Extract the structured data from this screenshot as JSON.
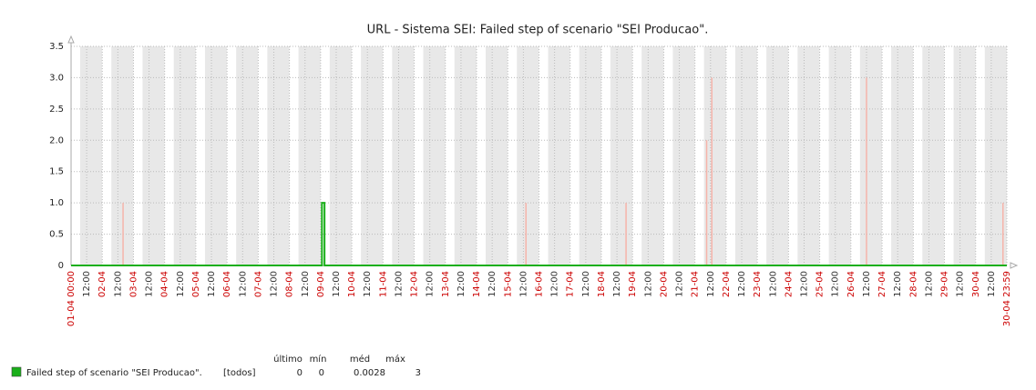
{
  "chart_data": {
    "type": "line",
    "title": "URL - Sistema SEI: Failed step of scenario \"SEI Producao\".",
    "ylim": [
      0,
      3.5
    ],
    "yticks": [
      0,
      0.5,
      {
        "value": 1,
        "label": "1.0"
      },
      1.5,
      {
        "value": 2,
        "label": "2.0"
      },
      2.5,
      {
        "value": 3,
        "label": "3.0"
      },
      3.5
    ],
    "xlim": [
      "01-04 00:00",
      "30-04 23:59"
    ],
    "date_color": "#cc0000",
    "grid": true,
    "xticks": [
      "01-04 00:00",
      {
        "value": "01-04 12:00",
        "label": "12:00"
      },
      {
        "value": "02-04 00:00",
        "label": "02-04"
      },
      {
        "value": "02-04 12:00",
        "label": "12:00"
      },
      {
        "value": "03-04 00:00",
        "label": "03-04"
      },
      {
        "value": "03-04 12:00",
        "label": "12:00"
      },
      {
        "value": "04-04 00:00",
        "label": "04-04"
      },
      {
        "value": "04-04 12:00",
        "label": "12:00"
      },
      {
        "value": "05-04 00:00",
        "label": "05-04"
      },
      {
        "value": "05-04 12:00",
        "label": "12:00"
      },
      {
        "value": "06-04 00:00",
        "label": "06-04"
      },
      {
        "value": "06-04 12:00",
        "label": "12:00"
      },
      {
        "value": "07-04 00:00",
        "label": "07-04"
      },
      {
        "value": "07-04 12:00",
        "label": "12:00"
      },
      {
        "value": "08-04 00:00",
        "label": "08-04"
      },
      {
        "value": "08-04 12:00",
        "label": "12:00"
      },
      {
        "value": "09-04 00:00",
        "label": "09-04"
      },
      {
        "value": "09-04 12:00",
        "label": "12:00"
      },
      {
        "value": "10-04 00:00",
        "label": "10-04"
      },
      {
        "value": "10-04 12:00",
        "label": "12:00"
      },
      {
        "value": "11-04 00:00",
        "label": "11-04"
      },
      {
        "value": "11-04 12:00",
        "label": "12:00"
      },
      {
        "value": "12-04 00:00",
        "label": "12-04"
      },
      {
        "value": "12-04 12:00",
        "label": "12:00"
      },
      {
        "value": "13-04 00:00",
        "label": "13-04"
      },
      {
        "value": "13-04 12:00",
        "label": "12:00"
      },
      {
        "value": "14-04 00:00",
        "label": "14-04"
      },
      {
        "value": "14-04 12:00",
        "label": "12:00"
      },
      {
        "value": "15-04 00:00",
        "label": "15-04"
      },
      {
        "value": "15-04 12:00",
        "label": "12:00"
      },
      {
        "value": "16-04 00:00",
        "label": "16-04"
      },
      {
        "value": "16-04 12:00",
        "label": "12:00"
      },
      {
        "value": "17-04 00:00",
        "label": "17-04"
      },
      {
        "value": "17-04 12:00",
        "label": "12:00"
      },
      {
        "value": "18-04 00:00",
        "label": "18-04"
      },
      {
        "value": "18-04 12:00",
        "label": "12:00"
      },
      {
        "value": "19-04 00:00",
        "label": "19-04"
      },
      {
        "value": "19-04 12:00",
        "label": "12:00"
      },
      {
        "value": "20-04 00:00",
        "label": "20-04"
      },
      {
        "value": "20-04 12:00",
        "label": "12:00"
      },
      {
        "value": "21-04 00:00",
        "label": "21-04"
      },
      {
        "value": "21-04 12:00",
        "label": "12:00"
      },
      {
        "value": "22-04 00:00",
        "label": "22-04"
      },
      {
        "value": "22-04 12:00",
        "label": "12:00"
      },
      {
        "value": "23-04 00:00",
        "label": "23-04"
      },
      {
        "value": "23-04 12:00",
        "label": "12:00"
      },
      {
        "value": "24-04 00:00",
        "label": "24-04"
      },
      {
        "value": "24-04 12:00",
        "label": "12:00"
      },
      {
        "value": "25-04 00:00",
        "label": "25-04"
      },
      {
        "value": "25-04 12:00",
        "label": "12:00"
      },
      {
        "value": "26-04 00:00",
        "label": "26-04"
      },
      {
        "value": "26-04 12:00",
        "label": "12:00"
      },
      {
        "value": "27-04 00:00",
        "label": "27-04"
      },
      {
        "value": "27-04 12:00",
        "label": "12:00"
      },
      {
        "value": "28-04 00:00",
        "label": "28-04"
      },
      {
        "value": "28-04 12:00",
        "label": "12:00"
      },
      {
        "value": "29-04 00:00",
        "label": "29-04"
      },
      {
        "value": "29-04 12:00",
        "label": "12:00"
      },
      {
        "value": "30-04 00:00",
        "label": "30-04"
      },
      {
        "value": "30-04 12:00",
        "label": "12:00"
      },
      "30-04 23:59"
    ],
    "series": [
      {
        "name": "Failed step of scenario \"SEI Producao\".",
        "color": "#1aaf1a",
        "x": [
          "01-04 00:00",
          "09-04 01:00",
          "09-04 01:00",
          "09-04 03:00",
          "09-04 03:00",
          "30-04 23:59"
        ],
        "values": [
          0,
          0,
          1,
          1,
          0,
          0
        ]
      }
    ],
    "max_values": {
      "color": "#f6b4aa",
      "x": [
        "02-04 16:00",
        "15-04 14:00",
        "18-04 19:00",
        "21-04 09:00",
        "21-04 13:00",
        "26-04 12:00",
        "30-04 21:00"
      ],
      "values": [
        1,
        1,
        1,
        2,
        3,
        3,
        1
      ]
    },
    "legend": {
      "scope": "[todos]",
      "columns": [
        "último",
        "mín",
        "méd",
        "máx"
      ],
      "stats": [
        0,
        0,
        0.0028,
        3
      ]
    }
  }
}
